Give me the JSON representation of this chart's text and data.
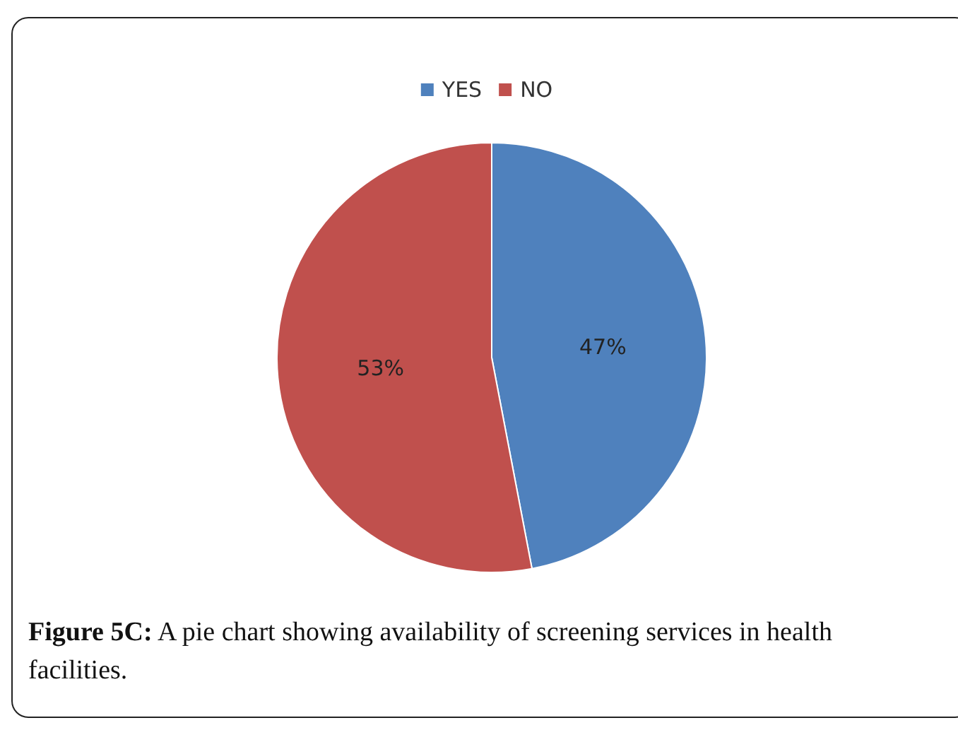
{
  "chart_data": {
    "type": "pie",
    "categories": [
      "YES",
      "NO"
    ],
    "values": [
      47,
      53
    ],
    "colors": [
      "#4f81bd",
      "#c0504d"
    ],
    "legend": "top",
    "value_labels": [
      "47%",
      "53%"
    ],
    "annotations": [
      "Figure 5C: A pie chart showing availability of screening services in health facilities."
    ]
  }
}
